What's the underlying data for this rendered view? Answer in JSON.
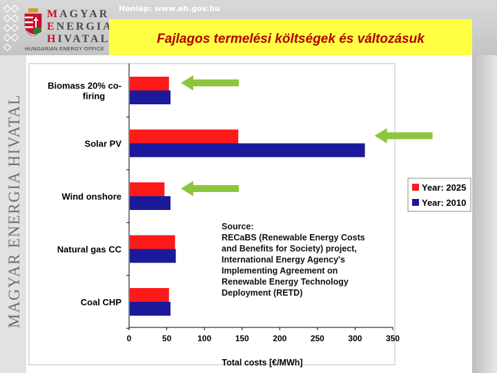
{
  "header": {
    "homepage": "Honlap: www.eh.gov.hu",
    "title": "Fajlagos termelési költségek és változásuk",
    "logo_lines": [
      {
        "cap": "M",
        "rest": "AGYAR"
      },
      {
        "cap": "E",
        "rest": "NERGIA"
      },
      {
        "cap": "H",
        "rest": "IVATAL"
      }
    ],
    "logo_subtitle": "HUNGARIAN ENERGY OFFICE",
    "vertical_title": "MAGYAR ENERGIA HIVATAL"
  },
  "colors": {
    "year2025": "#ff1a1a",
    "year2010": "#1a1a9a",
    "arrow": "#8cc63f",
    "title_bg": "#ffff44",
    "title_text": "#b00000"
  },
  "chart_data": {
    "type": "bar",
    "orientation": "horizontal",
    "categories": [
      "Biomass 20% co-firing",
      "Solar PV",
      "Wind onshore",
      "Natural gas CC",
      "Coal CHP"
    ],
    "category_display": [
      [
        "Biomass 20% co-",
        "firing"
      ],
      [
        "Solar PV"
      ],
      [
        "Wind onshore"
      ],
      [
        "Natural gas CC"
      ],
      [
        "Coal CHP"
      ]
    ],
    "series": [
      {
        "name": "Year: 2025",
        "color": "#ff1a1a",
        "values": [
          53,
          145,
          47,
          61,
          53
        ]
      },
      {
        "name": "Year: 2010",
        "color": "#1a1a9a",
        "values": [
          55,
          313,
          55,
          62,
          55
        ]
      }
    ],
    "xlabel": "Total costs [€/MWh]",
    "xlim": [
      0,
      350
    ],
    "xticks": [
      0,
      50,
      100,
      150,
      200,
      250,
      300,
      350
    ],
    "highlighted_categories": [
      "Biomass 20% co-firing",
      "Solar PV",
      "Wind onshore"
    ],
    "legend_position": "right",
    "annotation": [
      "Source:",
      "RECaBS (Renewable Energy Costs",
      "and Benefits for Society) project,",
      "International Energy Agency's",
      "Implementing Agreement on",
      "Renewable Energy Technology",
      "Deployment (RETD)"
    ]
  }
}
